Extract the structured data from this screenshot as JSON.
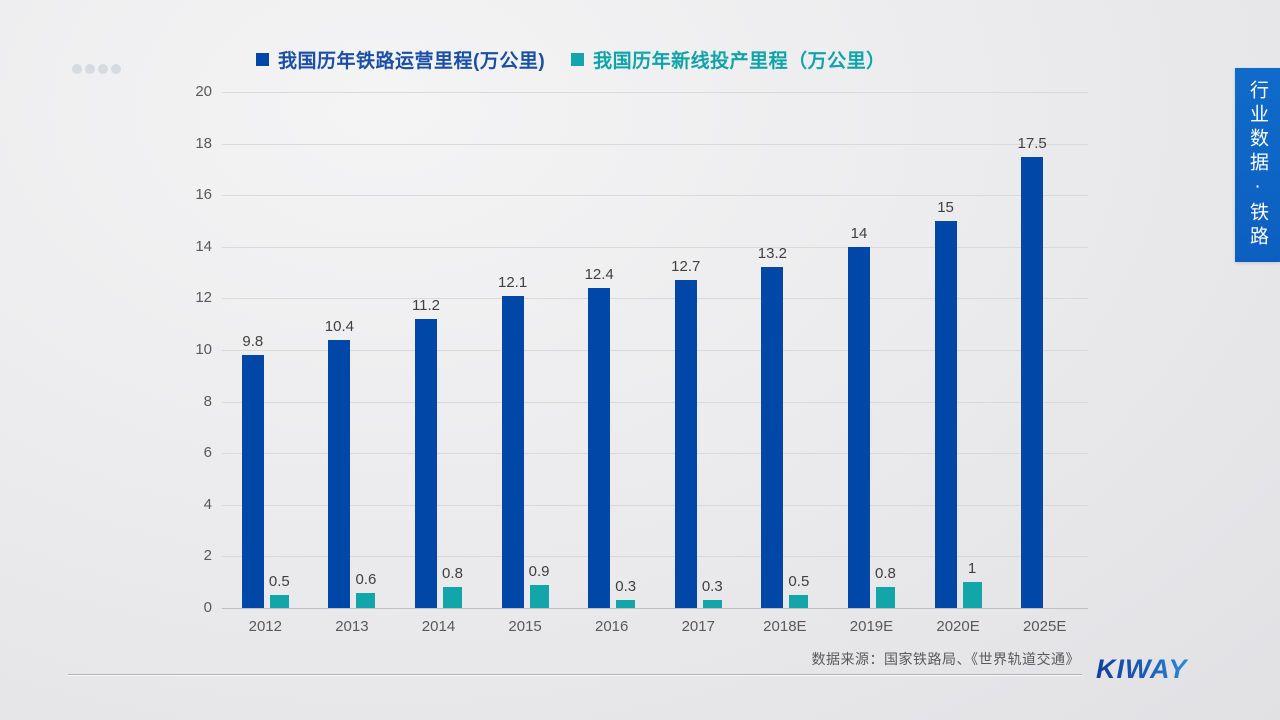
{
  "page": {
    "side_banner": "行业数据·铁路",
    "source_note": "数据来源：国家铁路局、《世界轨道交通》",
    "brand": "KIWAY",
    "pagination_dot_count": 4
  },
  "colors": {
    "series_operating": "#0047a8",
    "series_newline": "#12a5aa",
    "banner": "#0d65c6",
    "axis_text": "#595959",
    "value_label": "#404040"
  },
  "chart_data": {
    "type": "bar",
    "title": "",
    "categories": [
      "2012",
      "2013",
      "2014",
      "2015",
      "2016",
      "2017",
      "2018E",
      "2019E",
      "2020E",
      "2025E"
    ],
    "series": [
      {
        "name": "我国历年铁路运营里程(万公里)",
        "color": "#0047a8",
        "values": [
          9.8,
          10.4,
          11.2,
          12.1,
          12.4,
          12.7,
          13.2,
          14,
          15,
          17.5
        ]
      },
      {
        "name": "我国历年新线投产里程（万公里）",
        "color": "#12a5aa",
        "values": [
          0.5,
          0.6,
          0.8,
          0.9,
          0.3,
          0.3,
          0.5,
          0.8,
          1,
          null
        ]
      }
    ],
    "xlabel": "",
    "ylabel": "",
    "ylim": [
      0,
      20
    ],
    "ytick_step": 2,
    "grid": true,
    "legend_position": "top"
  }
}
